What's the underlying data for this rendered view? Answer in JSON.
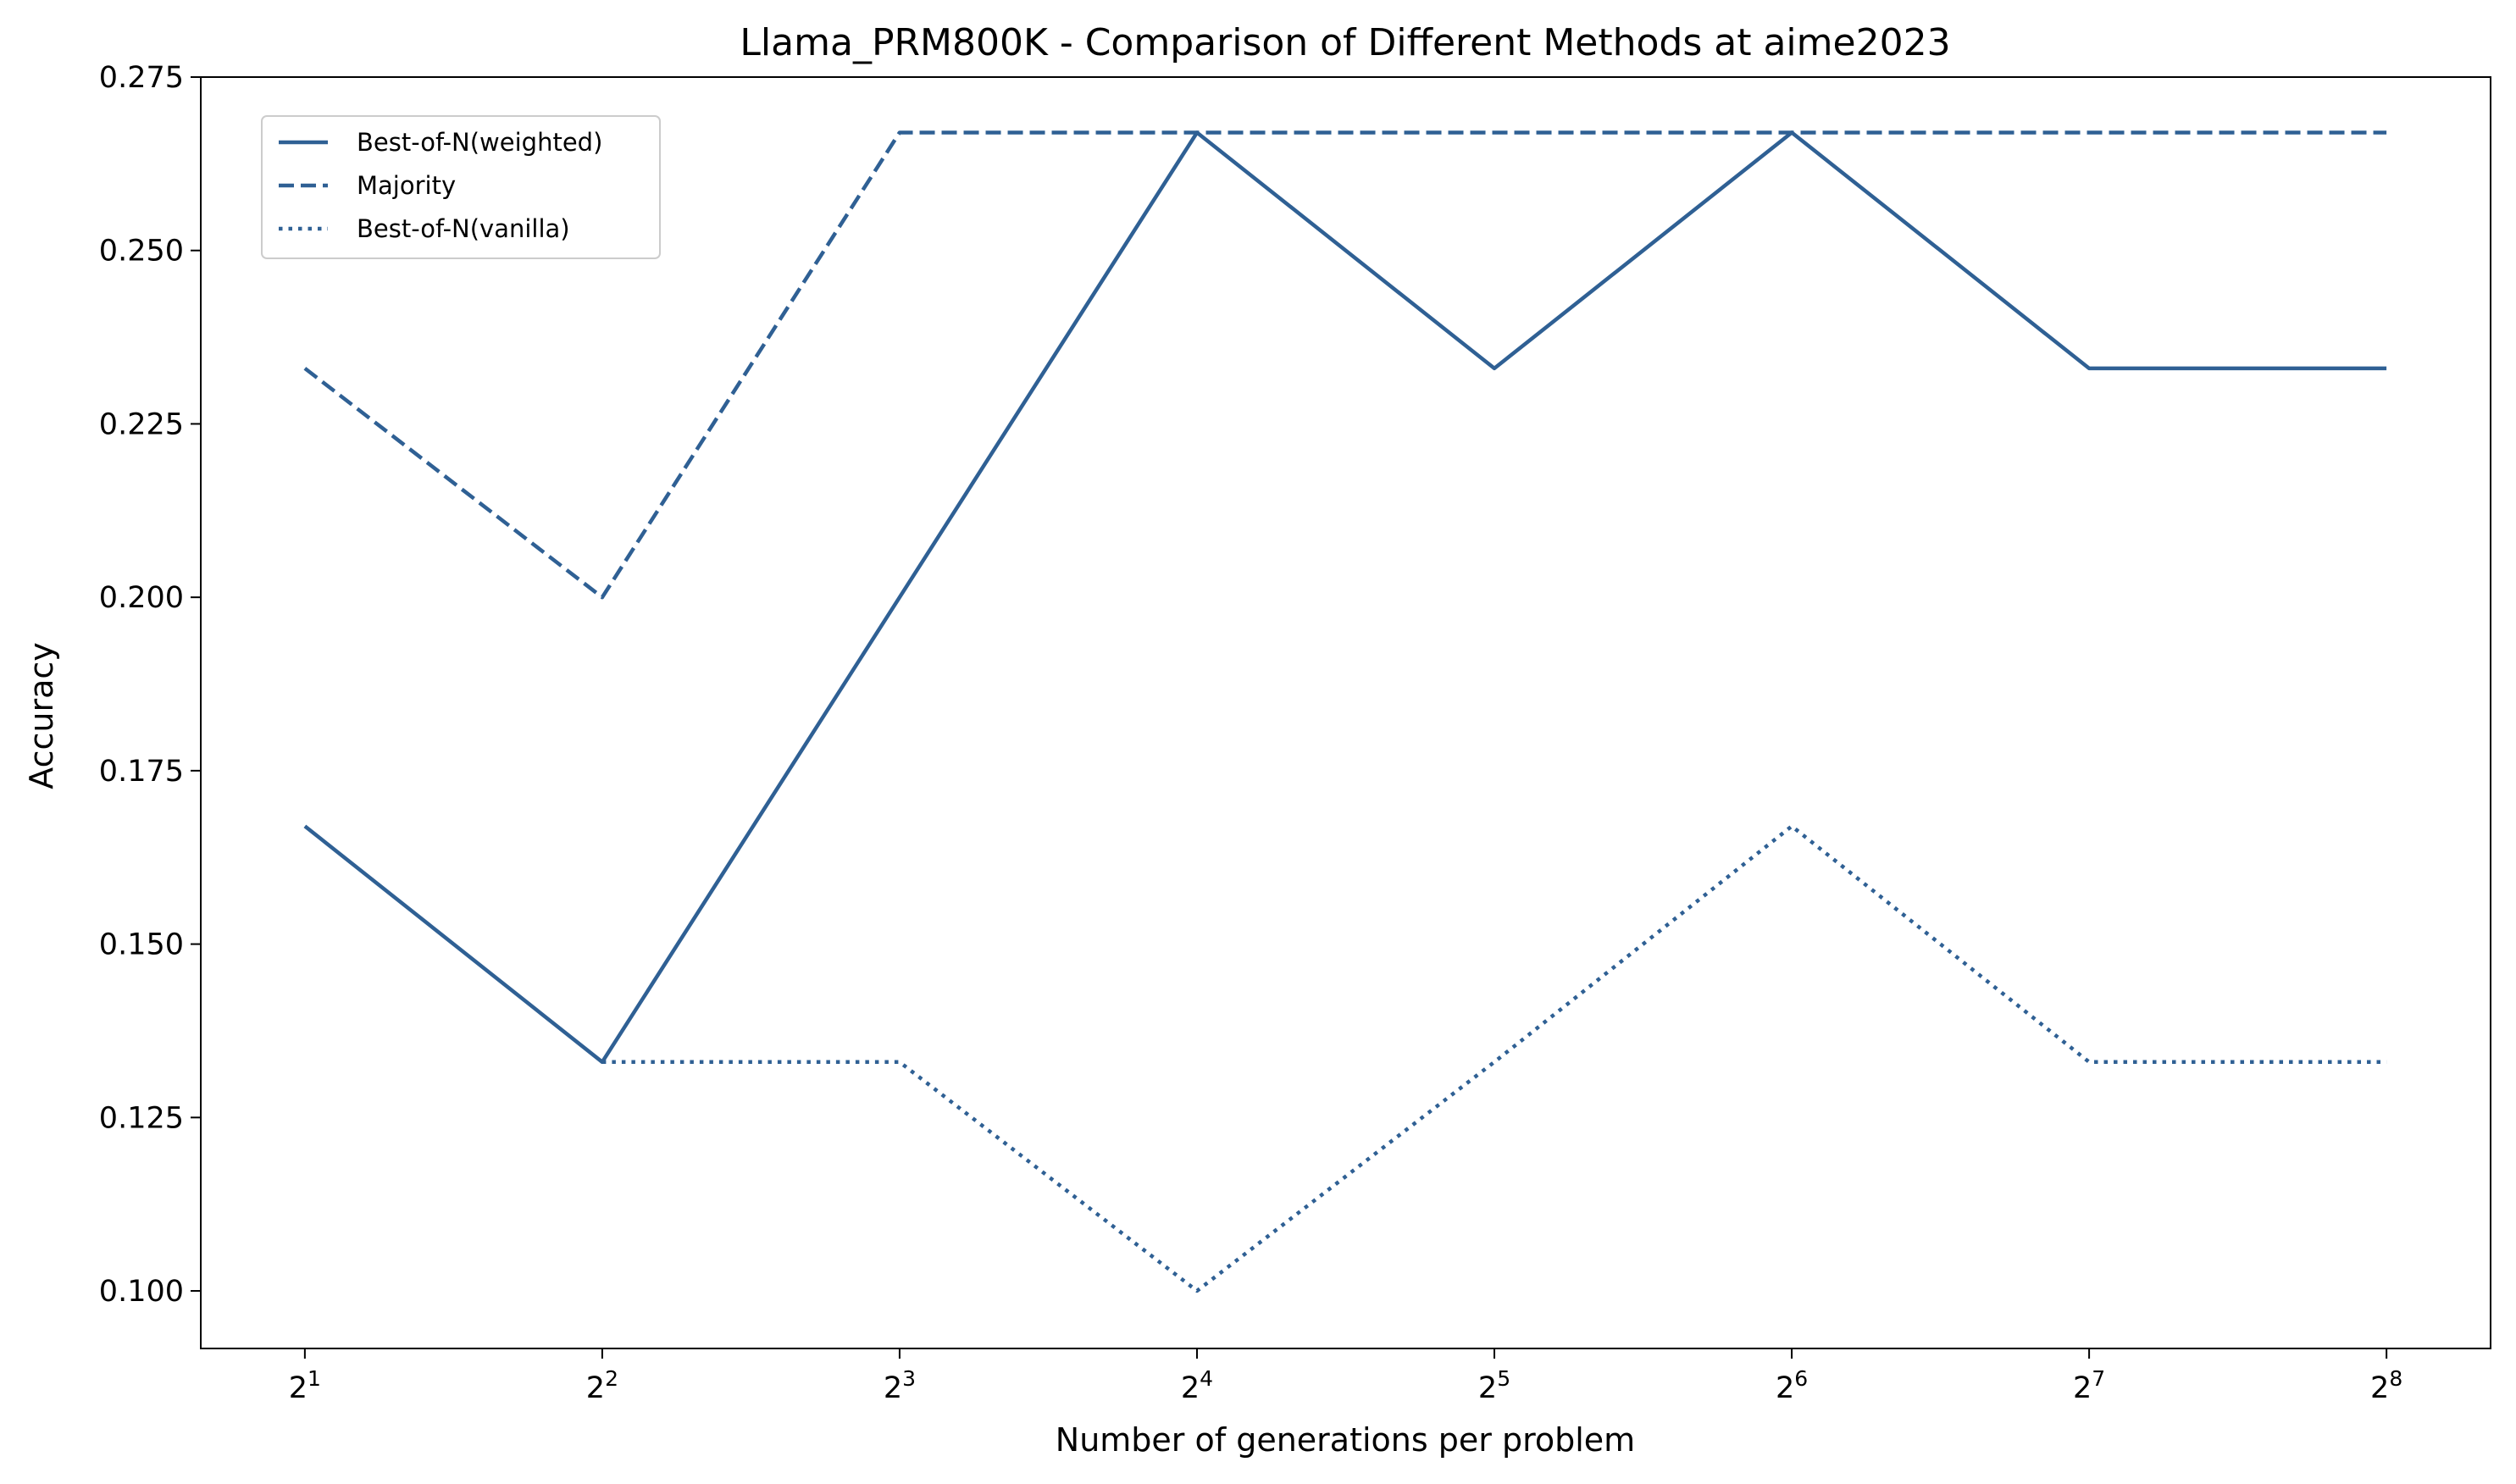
{
  "chart_data": {
    "type": "line",
    "title": "Llama_PRM800K - Comparison of Different Methods at aime2023",
    "xlabel": "Number of generations per problem",
    "ylabel": "Accuracy",
    "x_scale": "log2",
    "x": [
      2,
      4,
      8,
      16,
      32,
      64,
      128,
      256
    ],
    "x_tick_labels": [
      {
        "base": "2",
        "exp": "1"
      },
      {
        "base": "2",
        "exp": "2"
      },
      {
        "base": "2",
        "exp": "3"
      },
      {
        "base": "2",
        "exp": "4"
      },
      {
        "base": "2",
        "exp": "5"
      },
      {
        "base": "2",
        "exp": "6"
      },
      {
        "base": "2",
        "exp": "7"
      },
      {
        "base": "2",
        "exp": "8"
      }
    ],
    "ylim": [
      0.0917,
      0.275
    ],
    "y_ticks": [
      "0.100",
      "0.125",
      "0.150",
      "0.175",
      "0.200",
      "0.225",
      "0.250",
      "0.275"
    ],
    "grid": false,
    "legend_placement": "top-left",
    "color": "#2f6094",
    "series": [
      {
        "name": "Best-of-N(weighted)",
        "style": "solid",
        "values": [
          0.167,
          0.133,
          0.2,
          0.267,
          0.233,
          0.267,
          0.233,
          0.233
        ]
      },
      {
        "name": "Majority",
        "style": "dashed",
        "values": [
          0.233,
          0.2,
          0.267,
          0.267,
          0.267,
          0.267,
          0.267,
          0.267
        ]
      },
      {
        "name": "Best-of-N(vanilla)",
        "style": "dotted",
        "values": [
          null,
          0.133,
          0.133,
          0.1,
          0.133,
          0.167,
          0.133,
          0.133
        ]
      }
    ]
  }
}
